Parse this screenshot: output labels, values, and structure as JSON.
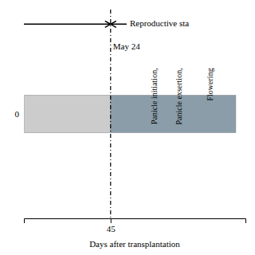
{
  "chart_data": {
    "type": "bar",
    "orientation": "horizontal",
    "stacked": true,
    "xlabel": "Days after transplantation",
    "categories": [
      "0"
    ],
    "series": [
      {
        "color": "#cccccc",
        "values": [
          45
        ]
      },
      {
        "color": "#8a9da8",
        "values": [
          65
        ]
      }
    ],
    "xlim": [
      0,
      115
    ],
    "xticks": [
      45
    ],
    "grid": false,
    "annotations": [
      {
        "text": "May 24",
        "x": 45,
        "line_style": "dashdot"
      },
      {
        "text": "Reproductive sta",
        "x": 55,
        "marker": "arrow"
      },
      {
        "text": "Panicle initiation,",
        "x": 68
      },
      {
        "text": "Panicle exsertion,",
        "x": 81
      },
      {
        "text": "Flowering",
        "x": 97
      }
    ]
  }
}
